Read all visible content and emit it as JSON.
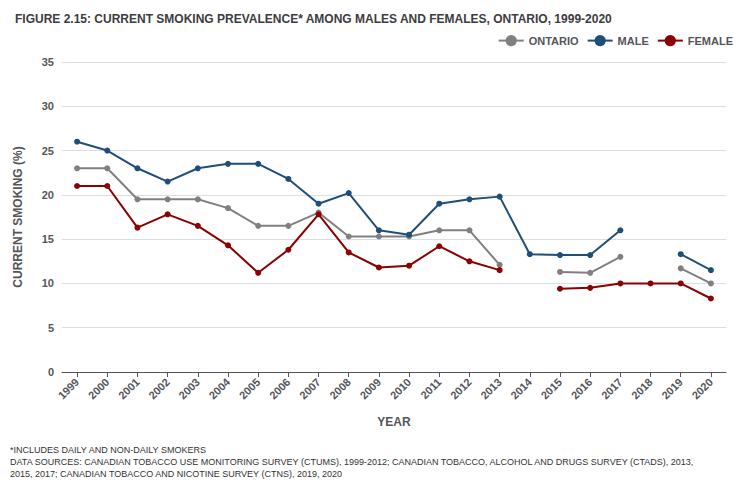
{
  "chart_data": {
    "type": "line",
    "title": "FIGURE 2.15: CURRENT SMOKING PREVALENCE* AMONG MALES AND FEMALES, ONTARIO, 1999-2020",
    "xlabel": "YEAR",
    "ylabel": "CURRENT SMOKING (%)",
    "x": [
      1999,
      2000,
      2001,
      2002,
      2003,
      2004,
      2005,
      2006,
      2007,
      2008,
      2009,
      2010,
      2011,
      2012,
      2013,
      2014,
      2015,
      2016,
      2017,
      2018,
      2019,
      2020
    ],
    "series": [
      {
        "name": "ONTARIO",
        "color": "#808080",
        "values": [
          23.0,
          23.0,
          19.5,
          19.5,
          19.5,
          18.5,
          16.5,
          16.5,
          18.0,
          15.3,
          15.3,
          15.3,
          16.0,
          16.0,
          12.1,
          null,
          11.3,
          11.2,
          13.0,
          null,
          11.7,
          10.0
        ]
      },
      {
        "name": "MALE",
        "color": "#1f4e79",
        "values": [
          26.0,
          25.0,
          23.0,
          21.5,
          23.0,
          23.5,
          23.5,
          21.8,
          19.0,
          20.2,
          16.0,
          15.5,
          19.0,
          19.5,
          19.8,
          13.3,
          13.2,
          13.2,
          16.0,
          null,
          13.3,
          11.5
        ]
      },
      {
        "name": "FEMALE",
        "color": "#8B0000",
        "values": [
          21.0,
          21.0,
          16.3,
          17.8,
          16.5,
          14.3,
          11.2,
          13.8,
          17.8,
          13.5,
          11.8,
          12.0,
          14.2,
          12.5,
          11.5,
          null,
          9.4,
          9.5,
          10.0,
          10.0,
          10.0,
          8.3
        ]
      }
    ],
    "xlim": [
      1998.5,
      2020.5
    ],
    "xticks": [
      1999,
      2000,
      2001,
      2002,
      2003,
      2004,
      2005,
      2006,
      2007,
      2008,
      2009,
      2010,
      2011,
      2012,
      2013,
      2014,
      2015,
      2016,
      2017,
      2018,
      2019,
      2020
    ],
    "ylim": [
      0,
      35
    ],
    "yticks": [
      0,
      5,
      10,
      15,
      20,
      25,
      30,
      35
    ],
    "grid": true,
    "legend": "upper right",
    "marker": "circle",
    "annotations": [
      "*INCLUDES DAILY AND NON-DAILY SMOKERS",
      "DATA SOURCES: CANADIAN TOBACCO USE MONITORING SURVEY (CTUMS), 1999-2012; CANADIAN TOBACCO, ALCOHOL AND DRUGS SURVEY (CTADS), 2013,",
      "2015, 2017; CANADIAN TOBACCO AND NICOTINE SURVEY (CTNS), 2019, 2020"
    ]
  }
}
